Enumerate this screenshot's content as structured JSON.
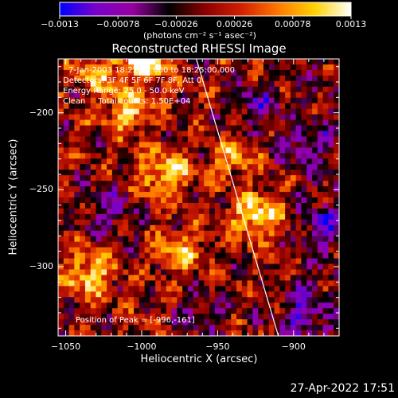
{
  "page": {
    "footer_timestamp": "27-Apr-2022 17:51"
  },
  "colorbar": {
    "ticks": [
      "-0.0013",
      "-0.00078",
      "-0.00026",
      "0.00026",
      "0.00078",
      "0.0013"
    ],
    "range": [
      -0.0013,
      0.0013
    ],
    "unit_label": "(photons cm⁻² s⁻¹ asec⁻²)",
    "colors": [
      "#0000ff",
      "#7a00c8",
      "#9600a0",
      "#000000",
      "#8c0000",
      "#d22000",
      "#ff7800",
      "#ffd200",
      "#ffffff"
    ]
  },
  "chart_data": {
    "type": "heatmap",
    "title": "Reconstructed RHESSI Image",
    "xlabel": "Heliocentric X (arcsec)",
    "ylabel": "Heliocentric Y (arcsec)",
    "xlim": [
      -1055,
      -870
    ],
    "ylim": [
      -345,
      -165
    ],
    "xticks": [
      -1050,
      -1000,
      -950,
      -900
    ],
    "yticks": [
      -200,
      -250,
      -300
    ],
    "xtick_labels": [
      "−1050",
      "−1000",
      "−950",
      "−900"
    ],
    "ytick_labels": [
      "−200",
      "−250",
      "−300"
    ],
    "grid": false,
    "limb_line": [
      [
        -964,
        -165
      ],
      [
        -910,
        -345
      ]
    ],
    "annotations": [
      "7-Jan-2003 18:22:20.000 to 18:25:00.000",
      "Detectors: 3F 4F 5F 6F 7F 8F, Att 0",
      "Energy Range: 25.0 - 50.0 keV",
      "Clean     Total counts: 1.50E+04"
    ],
    "peak_label": "Position of Peak = [-996,-161]",
    "bright_regions": [
      {
        "x": -1010,
        "y": -200,
        "value": 0.0009
      },
      {
        "x": -985,
        "y": -240,
        "value": 0.0011
      },
      {
        "x": -1035,
        "y": -305,
        "value": 0.001
      },
      {
        "x": -975,
        "y": -290,
        "value": 0.0008
      },
      {
        "x": -940,
        "y": -230,
        "value": 0.0007
      },
      {
        "x": -925,
        "y": -268,
        "value": 0.0012
      },
      {
        "x": -1030,
        "y": -175,
        "value": 0.0007
      },
      {
        "x": -998,
        "y": -166,
        "value": 0.0013
      }
    ],
    "dark_regions": [
      {
        "x": -925,
        "y": -195,
        "value": -0.0007
      },
      {
        "x": -895,
        "y": -220,
        "value": -0.0006
      },
      {
        "x": -895,
        "y": -330,
        "value": -0.0008
      },
      {
        "x": -1020,
        "y": -265,
        "value": -0.0006
      },
      {
        "x": -960,
        "y": -330,
        "value": -0.0005
      },
      {
        "x": -880,
        "y": -275,
        "value": -0.0006
      }
    ]
  }
}
